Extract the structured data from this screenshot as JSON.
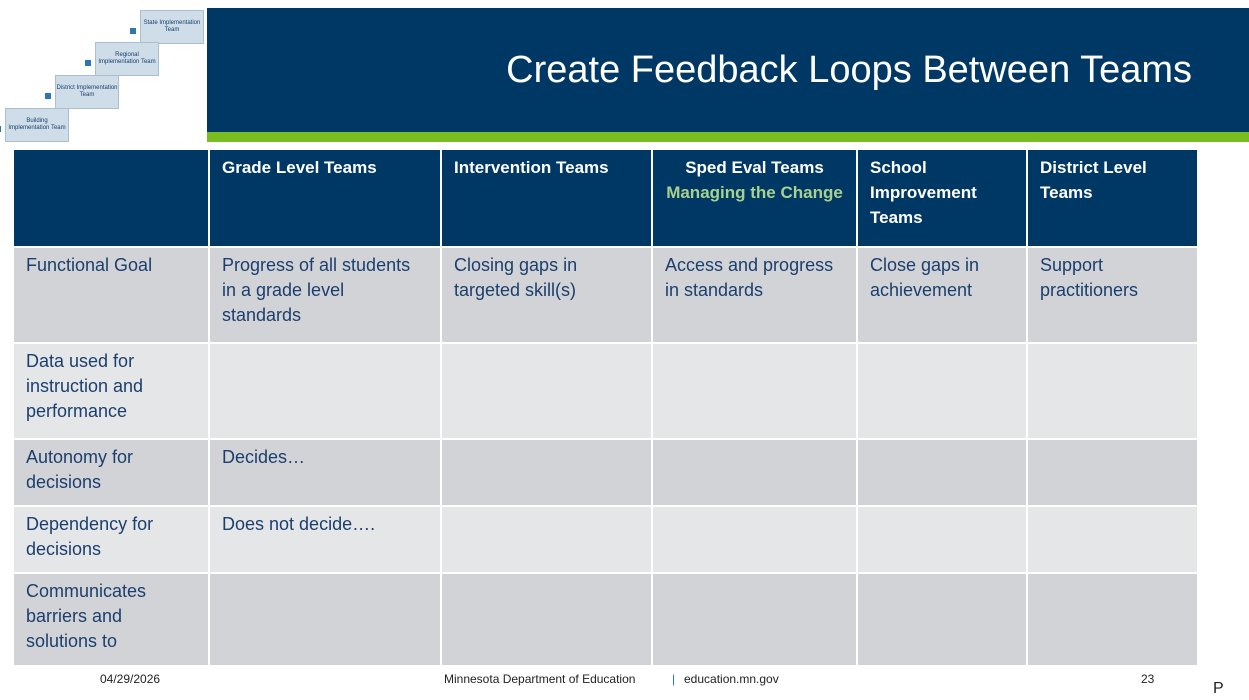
{
  "logo": {
    "levels": [
      "State Implementation Team",
      "Regional Implementation Team",
      "District Implementation Team",
      "Building Implementation Team"
    ]
  },
  "header": {
    "title": "Create Feedback Loops Between Teams"
  },
  "table": {
    "columns": [
      {
        "title": "Grade Level Teams"
      },
      {
        "title": "Intervention Teams"
      },
      {
        "title": "Sped Eval Teams",
        "subtitle": "Managing the Change"
      },
      {
        "title": "School Improvement Teams"
      },
      {
        "title": "District Level Teams"
      }
    ],
    "rows": [
      {
        "label": "Functional Goal",
        "cells": [
          "Progress of all students in a grade level standards",
          "Closing gaps in targeted skill(s)",
          "Access and progress in standards",
          "Close gaps in achievement",
          "Support practitioners"
        ]
      },
      {
        "label": "Data used for instruction and performance",
        "cells": []
      },
      {
        "label": "Autonomy for decisions",
        "cells": [
          "Decides…"
        ]
      },
      {
        "label": "Dependency for decisions",
        "cells": [
          "Does not decide…."
        ]
      },
      {
        "label": "Communicates barriers and solutions to",
        "cells": []
      }
    ]
  },
  "footer": {
    "date": "04/29/2026",
    "organization": "Minnesota Department of Education",
    "separator": "|",
    "url": "education.mn.gov",
    "page": "23",
    "stray": "P"
  }
}
